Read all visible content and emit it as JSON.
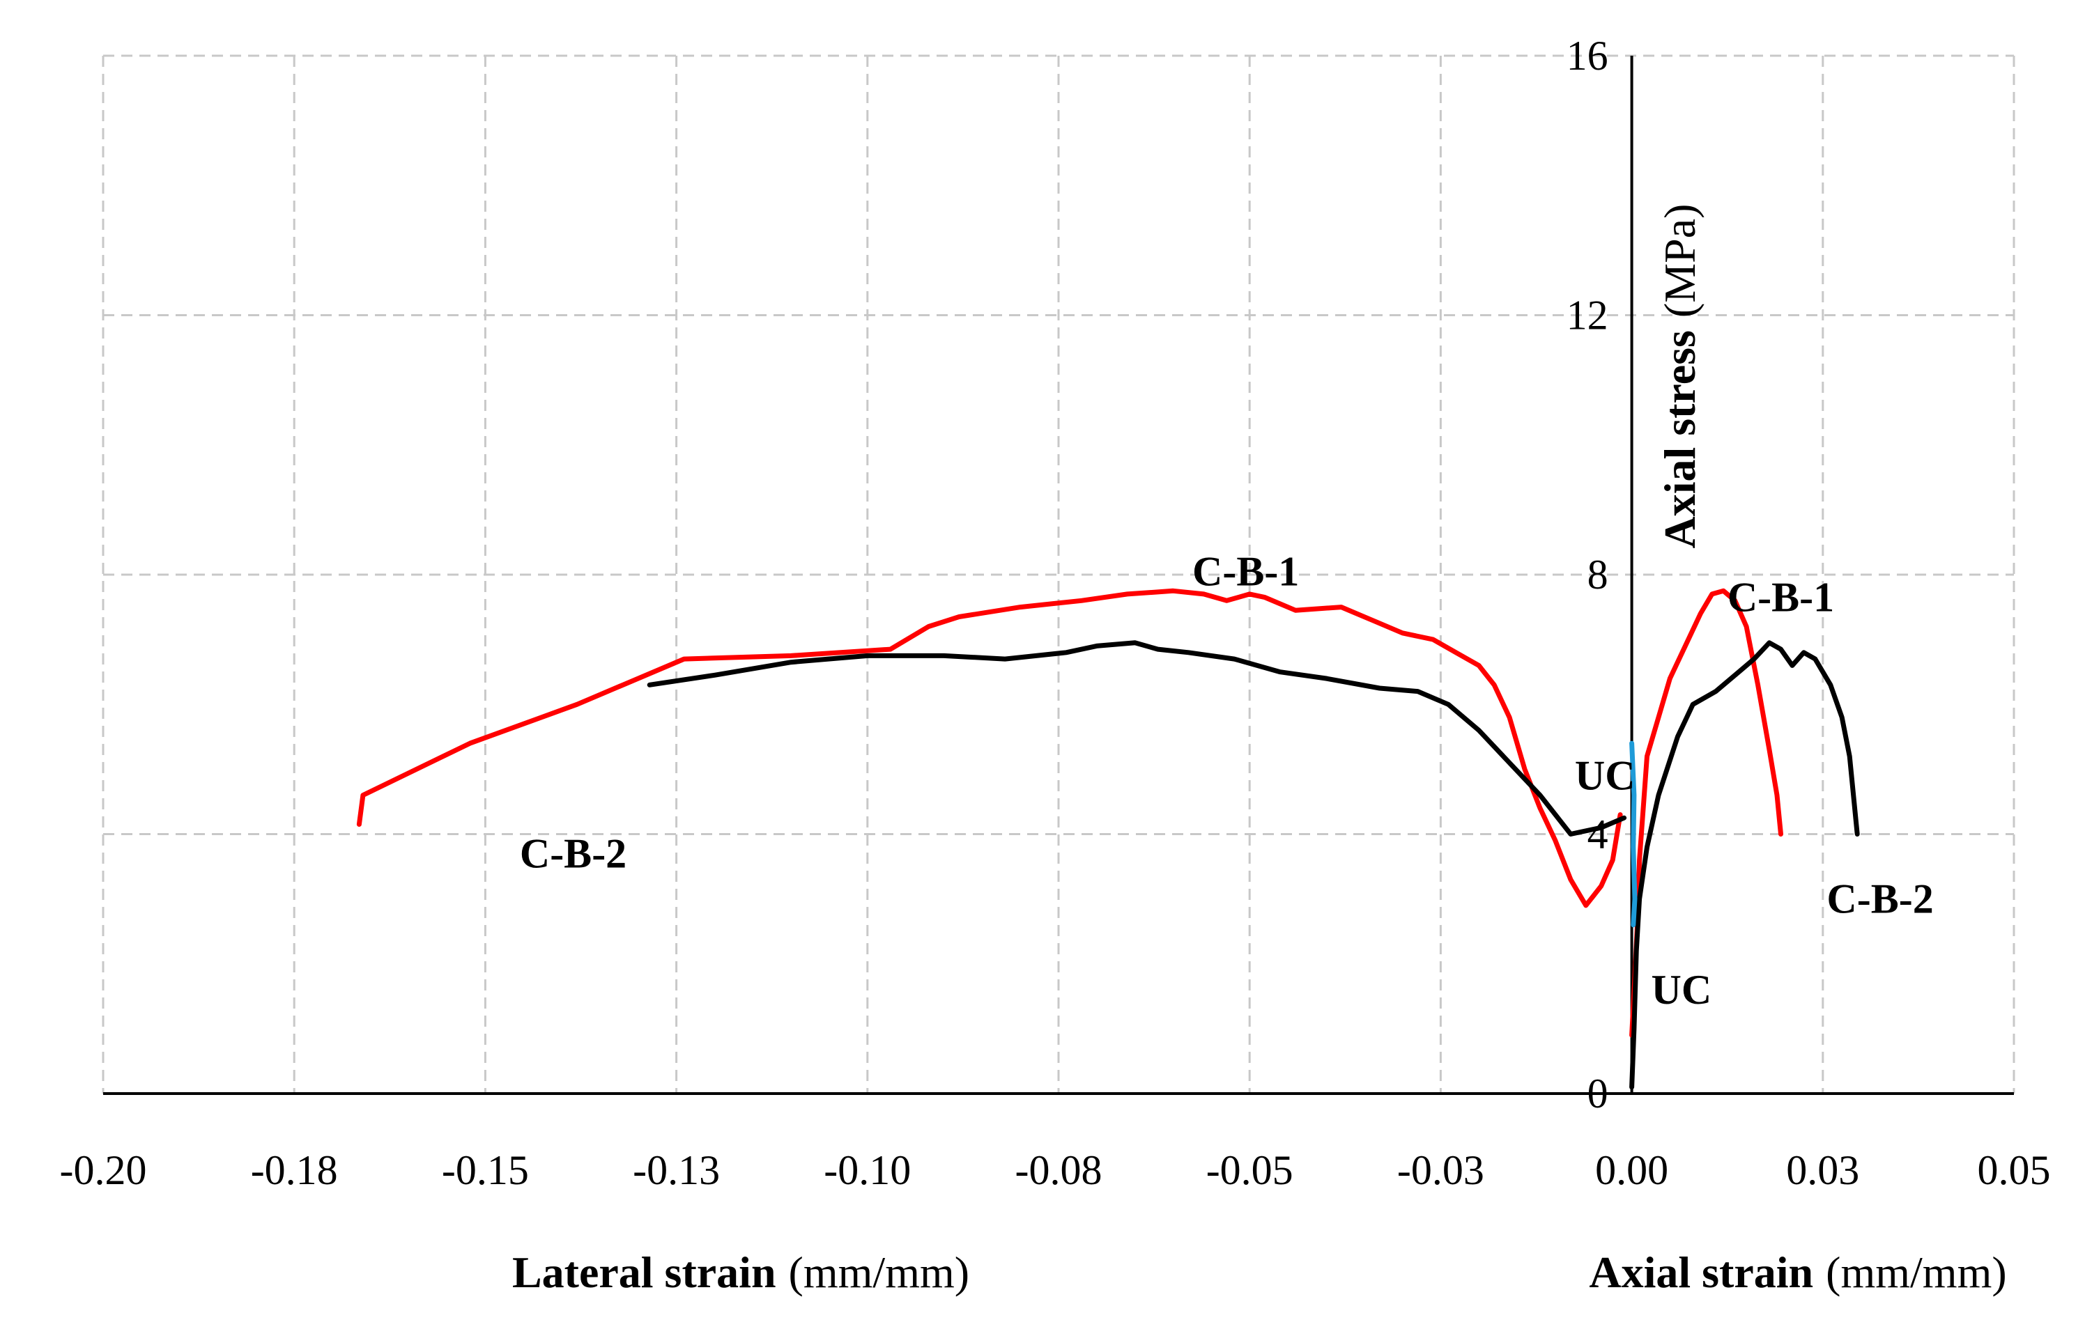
{
  "chart_data": {
    "type": "line",
    "title": "",
    "x_axis": {
      "label_bold": "Lateral strain",
      "label_unit": "(mm/mm)",
      "label2_bold": "Axial strain",
      "label2_unit": "(mm/mm)",
      "range": [
        -0.2,
        0.05
      ],
      "tick_values": [
        -0.2,
        -0.175,
        -0.15,
        -0.125,
        -0.1,
        -0.075,
        -0.05,
        -0.025,
        0.0,
        0.025,
        0.05
      ],
      "tick_labels": [
        "-0.20",
        "-0.18",
        "-0.15",
        "-0.13",
        "-0.10",
        "-0.08",
        "-0.05",
        "-0.03",
        "0.00",
        "0.03",
        "0.05"
      ]
    },
    "y_axis": {
      "label_bold": "Axial stress",
      "label_unit": "(MPa)",
      "range": [
        0,
        16
      ],
      "tick_values": [
        0,
        4,
        8,
        12,
        16
      ],
      "tick_labels": [
        "0",
        "4",
        "8",
        "12",
        "16"
      ]
    },
    "grid": true,
    "series": [
      {
        "name": "C-B-1 lateral",
        "color": "#ff0000",
        "points": [
          [
            -0.0015,
            4.3
          ],
          [
            -0.0025,
            3.6
          ],
          [
            -0.004,
            3.2
          ],
          [
            -0.006,
            2.9
          ],
          [
            -0.008,
            3.3
          ],
          [
            -0.01,
            3.9
          ],
          [
            -0.012,
            4.4
          ],
          [
            -0.014,
            5.0
          ],
          [
            -0.016,
            5.8
          ],
          [
            -0.018,
            6.3
          ],
          [
            -0.02,
            6.6
          ],
          [
            -0.023,
            6.8
          ],
          [
            -0.026,
            7.0
          ],
          [
            -0.03,
            7.1
          ],
          [
            -0.034,
            7.3
          ],
          [
            -0.038,
            7.5
          ],
          [
            -0.044,
            7.45
          ],
          [
            -0.048,
            7.65
          ],
          [
            -0.05,
            7.7
          ],
          [
            -0.053,
            7.6
          ],
          [
            -0.056,
            7.7
          ],
          [
            -0.06,
            7.75
          ],
          [
            -0.066,
            7.7
          ],
          [
            -0.072,
            7.6
          ],
          [
            -0.08,
            7.5
          ],
          [
            -0.088,
            7.35
          ],
          [
            -0.092,
            7.2
          ],
          [
            -0.097,
            6.85
          ],
          [
            -0.11,
            6.75
          ],
          [
            -0.124,
            6.7
          ],
          [
            -0.138,
            6.0
          ],
          [
            -0.152,
            5.4
          ],
          [
            -0.166,
            4.6
          ],
          [
            -0.1665,
            4.15
          ]
        ]
      },
      {
        "name": "C-B-2 lateral",
        "color": "#000000",
        "points": [
          [
            -0.001,
            4.25
          ],
          [
            -0.004,
            4.1
          ],
          [
            -0.008,
            4.0
          ],
          [
            -0.012,
            4.6
          ],
          [
            -0.016,
            5.1
          ],
          [
            -0.02,
            5.6
          ],
          [
            -0.024,
            6.0
          ],
          [
            -0.028,
            6.2
          ],
          [
            -0.033,
            6.25
          ],
          [
            -0.04,
            6.4
          ],
          [
            -0.046,
            6.5
          ],
          [
            -0.052,
            6.7
          ],
          [
            -0.058,
            6.8
          ],
          [
            -0.062,
            6.85
          ],
          [
            -0.065,
            6.95
          ],
          [
            -0.07,
            6.9
          ],
          [
            -0.074,
            6.8
          ],
          [
            -0.082,
            6.7
          ],
          [
            -0.09,
            6.75
          ],
          [
            -0.1,
            6.75
          ],
          [
            -0.11,
            6.65
          ],
          [
            -0.12,
            6.45
          ],
          [
            -0.1285,
            6.3
          ]
        ]
      },
      {
        "name": "C-B-1 axial",
        "color": "#ff0000",
        "points": [
          [
            0.0,
            0.9
          ],
          [
            0.0004,
            1.8
          ],
          [
            0.0008,
            2.8
          ],
          [
            0.001,
            3.6
          ],
          [
            0.0015,
            4.4
          ],
          [
            0.002,
            5.2
          ],
          [
            0.0035,
            5.8
          ],
          [
            0.005,
            6.4
          ],
          [
            0.007,
            6.9
          ],
          [
            0.009,
            7.4
          ],
          [
            0.0105,
            7.7
          ],
          [
            0.012,
            7.75
          ],
          [
            0.0135,
            7.6
          ],
          [
            0.015,
            7.2
          ],
          [
            0.0165,
            6.3
          ],
          [
            0.018,
            5.3
          ],
          [
            0.019,
            4.6
          ],
          [
            0.0195,
            4.0
          ]
        ]
      },
      {
        "name": "C-B-2 axial",
        "color": "#000000",
        "points": [
          [
            0.0,
            0.1
          ],
          [
            0.0003,
            1.0
          ],
          [
            0.0006,
            2.2
          ],
          [
            0.001,
            3.0
          ],
          [
            0.002,
            3.8
          ],
          [
            0.0035,
            4.6
          ],
          [
            0.006,
            5.5
          ],
          [
            0.008,
            6.0
          ],
          [
            0.011,
            6.2
          ],
          [
            0.014,
            6.5
          ],
          [
            0.016,
            6.7
          ],
          [
            0.018,
            6.95
          ],
          [
            0.0195,
            6.85
          ],
          [
            0.021,
            6.6
          ],
          [
            0.0225,
            6.8
          ],
          [
            0.024,
            6.7
          ],
          [
            0.026,
            6.3
          ],
          [
            0.0275,
            5.8
          ],
          [
            0.0285,
            5.2
          ],
          [
            0.029,
            4.6
          ],
          [
            0.0295,
            4.0
          ]
        ]
      },
      {
        "name": "UC",
        "color": "#1f9bd8",
        "points": [
          [
            0.0,
            5.4
          ],
          [
            0.0003,
            4.6
          ],
          [
            0.0002,
            3.8
          ],
          [
            0.0004,
            3.0
          ],
          [
            0.0002,
            2.6
          ]
        ]
      }
    ],
    "annotations": [
      {
        "text": "C-B-1",
        "x": -0.0505,
        "y": 8.05
      },
      {
        "text": "C-B-1",
        "x": 0.0195,
        "y": 7.65
      },
      {
        "text": "C-B-2",
        "x": -0.1385,
        "y": 3.7
      },
      {
        "text": "C-B-2",
        "x": 0.0325,
        "y": 3.0
      },
      {
        "text": "UC",
        "x": -0.0035,
        "y": 4.9
      },
      {
        "text": "UC",
        "x": 0.0065,
        "y": 1.6
      }
    ]
  }
}
